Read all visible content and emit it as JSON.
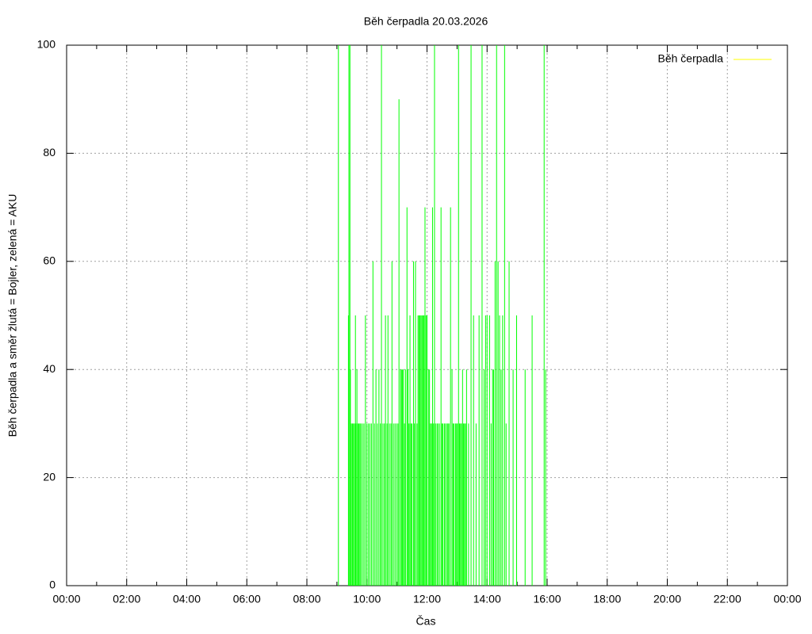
{
  "chart_data": {
    "type": "impulses",
    "title": "Běh čerpadla 20.03.2026",
    "x_label": "Čas",
    "y_label": "Běh čerpadla a směr žlutá = Bojler, zelená = AKU",
    "xlim": [
      0,
      1440
    ],
    "xticks": [
      {
        "value": 0,
        "label": "00:00"
      },
      {
        "value": 120,
        "label": "02:00"
      },
      {
        "value": 240,
        "label": "04:00"
      },
      {
        "value": 360,
        "label": "06:00"
      },
      {
        "value": 480,
        "label": "08:00"
      },
      {
        "value": 600,
        "label": "10:00"
      },
      {
        "value": 720,
        "label": "12:00"
      },
      {
        "value": 840,
        "label": "14:00"
      },
      {
        "value": 960,
        "label": "16:00"
      },
      {
        "value": 1080,
        "label": "18:00"
      },
      {
        "value": 1200,
        "label": "20:00"
      },
      {
        "value": 1320,
        "label": "22:00"
      },
      {
        "value": 1440,
        "label": "00:00"
      }
    ],
    "ylim": [
      0,
      100
    ],
    "yticks": [
      0,
      20,
      40,
      60,
      80,
      100
    ],
    "grid": true,
    "legend_position": "top-right",
    "legend_color": "#ffff00",
    "x": [
      543,
      563,
      564,
      566,
      567,
      569,
      571,
      573,
      575,
      577,
      578,
      580,
      582,
      584,
      586,
      588,
      591,
      594,
      597,
      600,
      603,
      606,
      609,
      612,
      615,
      618,
      621,
      624,
      627,
      629,
      632,
      635,
      637,
      640,
      642,
      645,
      648,
      650,
      653,
      656,
      659,
      662,
      664,
      667,
      669,
      671,
      673,
      675,
      677,
      680,
      682,
      684,
      686,
      688,
      690,
      693,
      695,
      697,
      700,
      702,
      704,
      706,
      708,
      710,
      712,
      714,
      716,
      718,
      720,
      723,
      725,
      727,
      729,
      731,
      733,
      735,
      737,
      740,
      742,
      745,
      748,
      750,
      752,
      755,
      757,
      760,
      762,
      764,
      767,
      770,
      772,
      774,
      777,
      779,
      781,
      783,
      785,
      787,
      789,
      791,
      793,
      795,
      797,
      799,
      803,
      808,
      813,
      818,
      824,
      830,
      834,
      837,
      840,
      845,
      848,
      851,
      853,
      856,
      859,
      862,
      865,
      868,
      871,
      875,
      878,
      884,
      892,
      899,
      916,
      930,
      954,
      957
    ],
    "series": [
      {
        "name": "Běh čerpadla",
        "color": "#00ff00",
        "values": [
          100,
          50,
          100,
          100,
          40,
          30,
          30,
          30,
          30,
          50,
          30,
          40,
          30,
          30,
          30,
          30,
          30,
          30,
          50,
          30,
          30,
          30,
          30,
          60,
          30,
          40,
          30,
          40,
          30,
          100,
          30,
          30,
          50,
          30,
          50,
          30,
          30,
          60,
          30,
          30,
          30,
          30,
          90,
          40,
          40,
          40,
          40,
          30,
          40,
          70,
          40,
          30,
          50,
          30,
          30,
          60,
          30,
          60,
          30,
          50,
          50,
          50,
          50,
          50,
          50,
          50,
          70,
          50,
          50,
          40,
          40,
          30,
          30,
          70,
          30,
          100,
          30,
          30,
          30,
          30,
          70,
          30,
          30,
          30,
          30,
          30,
          30,
          30,
          70,
          40,
          30,
          30,
          30,
          30,
          30,
          100,
          30,
          30,
          30,
          40,
          30,
          30,
          30,
          40,
          30,
          100,
          50,
          30,
          50,
          100,
          40,
          50,
          50,
          50,
          30,
          40,
          40,
          60,
          100,
          60,
          50,
          40,
          50,
          100,
          30,
          60,
          40,
          50,
          40,
          50,
          100,
          40
        ]
      }
    ]
  }
}
